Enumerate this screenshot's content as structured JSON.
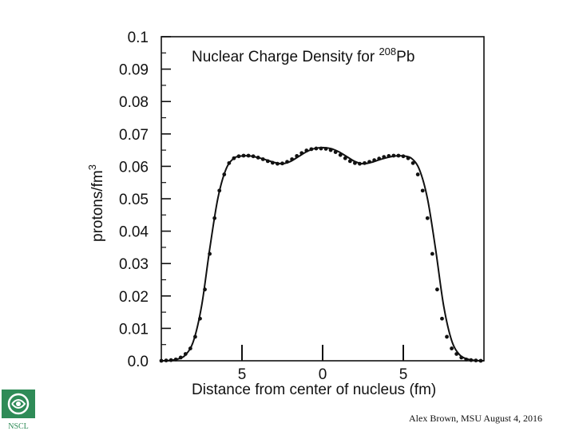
{
  "chart_data": {
    "type": "line",
    "title_main": "Nuclear Charge Density for ",
    "title_mass": "208",
    "title_element": "Pb",
    "xlabel": "Distance from center of nucleus (fm)",
    "ylabel_main": "protons/fm",
    "ylabel_power": "3",
    "xlim": [
      -10,
      10
    ],
    "ylim": [
      0,
      0.1
    ],
    "y_ticks": [
      "0.0",
      "0.01",
      "0.02",
      "0.03",
      "0.04",
      "0.05",
      "0.06",
      "0.07",
      "0.08",
      "0.09",
      "0.1"
    ],
    "x_ticks": [
      {
        "value": -5,
        "label": "5"
      },
      {
        "value": 0,
        "label": "0"
      },
      {
        "value": 5,
        "label": "5"
      }
    ],
    "grid": false,
    "series": [
      {
        "kind": "theory-curve",
        "x": [
          -10,
          -9.5,
          -9,
          -8.5,
          -8,
          -7.5,
          -7,
          -6.5,
          -6,
          -5.5,
          -5,
          -4.5,
          -4,
          -3.5,
          -3,
          -2.5,
          -2,
          -1.5,
          -1,
          -0.5,
          0,
          0.5,
          1,
          1.5,
          2,
          2.5,
          3,
          3.5,
          4,
          4.5,
          5,
          5.5,
          6,
          6.5,
          7,
          7.5,
          8,
          8.5,
          9,
          9.5,
          10
        ],
        "y": [
          0.0,
          0.0001,
          0.0005,
          0.0018,
          0.0062,
          0.017,
          0.0345,
          0.05,
          0.059,
          0.0625,
          0.0632,
          0.0632,
          0.0627,
          0.062,
          0.0612,
          0.0608,
          0.0615,
          0.063,
          0.0645,
          0.0655,
          0.0658,
          0.0655,
          0.0645,
          0.063,
          0.0615,
          0.0608,
          0.0612,
          0.062,
          0.0627,
          0.0632,
          0.0632,
          0.0625,
          0.059,
          0.05,
          0.0345,
          0.017,
          0.0062,
          0.0018,
          0.0005,
          0.0001,
          0.0
        ]
      },
      {
        "kind": "experimental-points",
        "x": [
          -10,
          -9.7,
          -9.4,
          -9.1,
          -8.8,
          -8.5,
          -8.2,
          -7.9,
          -7.6,
          -7.3,
          -7.0,
          -6.7,
          -6.4,
          -6.1,
          -5.8,
          -5.5,
          -5.2,
          -4.9,
          -4.6,
          -4.3,
          -4.0,
          -3.7,
          -3.4,
          -3.1,
          -2.8,
          -2.5,
          -2.2,
          -1.9,
          -1.6,
          -1.3,
          -1.0,
          -0.7,
          -0.4,
          -0.1,
          0.2,
          0.5,
          0.8,
          1.1,
          1.4,
          1.7,
          2.0,
          2.3,
          2.6,
          2.9,
          3.2,
          3.5,
          3.8,
          4.1,
          4.4,
          4.7,
          5.0,
          5.3,
          5.6,
          5.9,
          6.2,
          6.5,
          6.8,
          7.1,
          7.4,
          7.7,
          8.0,
          8.3,
          8.6,
          8.9,
          9.2,
          9.5,
          9.8
        ],
        "y": [
          0.0,
          0.0001,
          0.0002,
          0.0004,
          0.001,
          0.0021,
          0.0038,
          0.0074,
          0.013,
          0.022,
          0.033,
          0.044,
          0.0525,
          0.0575,
          0.061,
          0.0625,
          0.0631,
          0.0633,
          0.0633,
          0.0631,
          0.0627,
          0.0622,
          0.0616,
          0.0611,
          0.0608,
          0.0609,
          0.0614,
          0.0622,
          0.0632,
          0.0641,
          0.0649,
          0.0653,
          0.0655,
          0.0655,
          0.0654,
          0.065,
          0.0644,
          0.0635,
          0.0625,
          0.0616,
          0.061,
          0.0608,
          0.061,
          0.0614,
          0.0619,
          0.0624,
          0.0629,
          0.0632,
          0.0633,
          0.0633,
          0.0631,
          0.0625,
          0.061,
          0.0575,
          0.0525,
          0.044,
          0.033,
          0.022,
          0.013,
          0.0074,
          0.0038,
          0.0021,
          0.001,
          0.0004,
          0.0002,
          0.0001,
          0.0
        ]
      }
    ]
  },
  "footer": {
    "credit": "Alex Brown, MSU August 4, 2016",
    "logo_text": "NSCL"
  },
  "colors": {
    "ink": "#111111",
    "logo_green": "#2e8b57"
  }
}
